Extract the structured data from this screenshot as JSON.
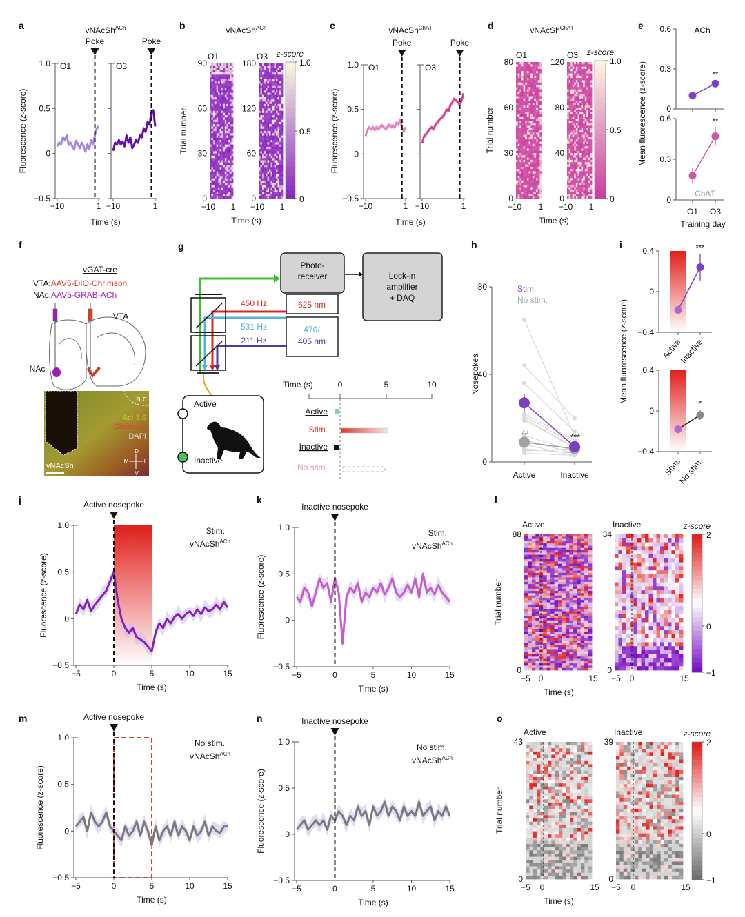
{
  "panel_labels": [
    "a",
    "b",
    "c",
    "d",
    "e",
    "f",
    "g",
    "h",
    "i",
    "j",
    "k",
    "l",
    "m",
    "n",
    "o"
  ],
  "chart_data": [
    {
      "panel": "a",
      "type": "line",
      "title": "vNAcSh",
      "title_sup": "ACh",
      "event_label": "Poke",
      "ylabel": "Fluorescence (z-score)",
      "xlabel": "Time (s)",
      "ylim": [
        -0.5,
        1.0
      ],
      "yticks": [
        "1.0",
        "0.5",
        "0",
        "−0.5"
      ],
      "xlim": [
        -10,
        1
      ],
      "subplots": [
        {
          "label": "O1",
          "xticks": [
            "−10",
            "1"
          ],
          "color": "#a787d8",
          "x_start": -10,
          "x_step": 0.5,
          "values": [
            0.08,
            0.12,
            0.1,
            0.18,
            0.15,
            0.2,
            0.1,
            0.12,
            0.08,
            0.05,
            0.14,
            0.1,
            0.06,
            0.12,
            0.08,
            0.02,
            0.1,
            0.05,
            0.15,
            0.1,
            0.2,
            0.28,
            0.3
          ]
        },
        {
          "label": "O3",
          "xticks": [
            "−10",
            "1"
          ],
          "color": "#6410a8",
          "x_start": -10,
          "x_step": 0.5,
          "values": [
            0.03,
            0.12,
            0.1,
            0.15,
            0.1,
            0.13,
            0.08,
            0.2,
            0.12,
            0.18,
            0.06,
            0.1,
            0.15,
            0.12,
            0.2,
            0.18,
            0.28,
            0.24,
            0.35,
            0.32,
            0.45,
            0.48,
            0.3
          ]
        }
      ]
    },
    {
      "panel": "b",
      "type": "heatmap",
      "title": "vNAcSh",
      "title_sup": "ACh",
      "ylabel": "Trial number",
      "xlabel": "Time (s)",
      "colorbar_label": "z-score",
      "colorbar_ticks": [
        "1.0",
        "0.5",
        "0"
      ],
      "colorbar_range": [
        0,
        1
      ],
      "colors": [
        "#8a26c0",
        "#fbf4df"
      ],
      "subplots": [
        {
          "label": "O1",
          "trials": 90,
          "yticks": [
            "90",
            "60",
            "30",
            "0"
          ],
          "xticks": [
            "−10",
            "1"
          ]
        },
        {
          "label": "O3",
          "trials": 180,
          "yticks": [
            "180",
            "120",
            "60",
            "0"
          ],
          "xticks": [
            "−10",
            "1"
          ]
        }
      ]
    },
    {
      "panel": "c",
      "type": "line",
      "title": "vNAcSh",
      "title_sup": "ChAT",
      "event_label": "Poke",
      "ylabel": "Fluorescence (z-score)",
      "xlabel": "Time (s)",
      "ylim": [
        -0.5,
        1.0
      ],
      "yticks": [
        "1.0",
        "0.5",
        "0",
        "−0.5"
      ],
      "xlim": [
        -10,
        1
      ],
      "subplots": [
        {
          "label": "O1",
          "xticks": [
            "−10",
            "1"
          ],
          "color": "#e584bd",
          "x_start": -10,
          "x_step": 0.5,
          "values": [
            0.2,
            0.27,
            0.3,
            0.28,
            0.3,
            0.27,
            0.3,
            0.28,
            0.3,
            0.32,
            0.3,
            0.28,
            0.3,
            0.33,
            0.3,
            0.32,
            0.3,
            0.35,
            0.33,
            0.38,
            0.3,
            0.25,
            0.3
          ]
        },
        {
          "label": "O3",
          "xticks": [
            "−10",
            "1"
          ],
          "color": "#d9408f",
          "x_start": -10,
          "x_step": 0.5,
          "values": [
            0.12,
            0.2,
            0.22,
            0.25,
            0.28,
            0.3,
            0.28,
            0.32,
            0.35,
            0.38,
            0.4,
            0.42,
            0.45,
            0.5,
            0.48,
            0.55,
            0.58,
            0.62,
            0.6,
            0.58,
            0.55,
            0.6,
            0.68
          ]
        }
      ]
    },
    {
      "panel": "d",
      "type": "heatmap",
      "title": "vNAcSh",
      "title_sup": "ChAT",
      "ylabel": "Trial number",
      "xlabel": "Time (s)",
      "colorbar_label": "z-score",
      "colorbar_ticks": [
        "1.0",
        "0.5",
        "0"
      ],
      "colorbar_range": [
        0,
        1
      ],
      "colors": [
        "#cc3ea2",
        "#fbf4df"
      ],
      "subplots": [
        {
          "label": "O1",
          "trials": 80,
          "yticks": [
            "80",
            "60",
            "30",
            "0"
          ],
          "xticks": [
            "−10",
            "1"
          ]
        },
        {
          "label": "O3",
          "trials": 120,
          "yticks": [
            "120",
            "80",
            "40",
            "0"
          ],
          "xticks": [
            "−10",
            "1"
          ]
        }
      ]
    },
    {
      "panel": "e",
      "type": "line",
      "ylabel": "Mean fluorescence (z-score)",
      "xlabel": "Training day",
      "categories": [
        "O1",
        "O3"
      ],
      "subplots": [
        {
          "label": "ACh",
          "ylim": [
            0,
            0.6
          ],
          "yticks": [
            "0.6",
            "0.3",
            "0"
          ],
          "color": "#7b3fbf",
          "label_color": "#111111",
          "values": [
            0.1,
            0.19
          ],
          "sem": [
            0.03,
            0.025
          ],
          "significance": [
            "",
            "**"
          ]
        },
        {
          "label": "ChAT",
          "ylim": [
            0,
            0.6
          ],
          "yticks": [
            "0.6",
            "0.3",
            "0"
          ],
          "color": "#cc5aa0",
          "label_color": "#999999",
          "values": [
            0.18,
            0.47
          ],
          "sem": [
            0.06,
            0.07
          ],
          "significance": [
            "",
            "**"
          ]
        }
      ]
    },
    {
      "panel": "h",
      "type": "line",
      "ylabel": "Nosepokes",
      "categories": [
        "Active",
        "Inactive"
      ],
      "ylim": [
        0,
        80
      ],
      "yticks": [
        "80",
        "40",
        "0"
      ],
      "series": [
        {
          "name": "Stim.",
          "color": "#7b3fbf",
          "values": [
            27,
            7
          ],
          "sem": [
            4,
            1
          ],
          "significance": [
            "",
            "***"
          ]
        },
        {
          "name": "No stim.",
          "color": "#a3a3a3",
          "values": [
            9,
            6
          ],
          "sem": [
            1,
            0.8
          ],
          "significance": [
            "##",
            ""
          ]
        }
      ],
      "individual": [
        [
          65,
          12
        ],
        [
          44,
          20
        ],
        [
          36,
          14
        ],
        [
          22,
          10
        ],
        [
          21,
          8
        ],
        [
          20,
          6
        ],
        [
          19,
          7
        ],
        [
          12,
          5
        ],
        [
          10,
          4
        ],
        [
          8,
          3
        ],
        [
          5,
          6
        ],
        [
          4,
          3
        ],
        [
          6,
          4
        ]
      ]
    },
    {
      "panel": "i",
      "type": "line",
      "ylabel": "Mean fluorescence (z-score)",
      "ylim": [
        -0.4,
        0.4
      ],
      "yticks": [
        "0.4",
        "0",
        "−0.4"
      ],
      "subplots": [
        {
          "categories": [
            "Active",
            "Inactive"
          ],
          "values": [
            -0.18,
            0.24
          ],
          "sem": [
            0.04,
            0.13
          ],
          "colors": [
            "#b06ac8",
            "#7b3fbf"
          ],
          "line_color": "#7b3fbf",
          "significance": [
            "",
            "***"
          ]
        },
        {
          "categories": [
            "Stim.",
            "No stim."
          ],
          "values": [
            -0.18,
            -0.04
          ],
          "sem": [
            0.04,
            0.05
          ],
          "colors": [
            "#b06ac8",
            "#8a8a8a"
          ],
          "line_color": "#111111",
          "significance": [
            "",
            "*"
          ]
        }
      ]
    },
    {
      "panel": "j",
      "type": "line",
      "title": "Active nosepoke",
      "condition": "Stim.",
      "sensor": "vNAcSh",
      "sensor_sup": "ACh",
      "ylabel": "Fluorescence (z-score)",
      "xlabel": "Time (s)",
      "ylim": [
        -0.5,
        1.0
      ],
      "xlim": [
        -5,
        15
      ],
      "yticks": [
        "1.0",
        "0.5",
        "0",
        "−0.5"
      ],
      "xticks": [
        "−5",
        "0",
        "5",
        "10",
        "15"
      ],
      "color": "#8a1fb8",
      "stim_window": [
        0,
        5
      ],
      "x_start": -5,
      "x_step": 0.5,
      "values": [
        0.05,
        0.15,
        0.1,
        0.2,
        0.08,
        0.15,
        0.2,
        0.25,
        0.3,
        0.4,
        0.5,
        0.2,
        0.0,
        -0.1,
        -0.15,
        -0.1,
        -0.2,
        -0.22,
        -0.25,
        -0.3,
        -0.35,
        -0.15,
        -0.05,
        -0.1,
        0.0,
        -0.05,
        0.02,
        0.05,
        0.0,
        0.05,
        0.08,
        0.03,
        0.1,
        0.05,
        0.12,
        0.08,
        0.1,
        0.15,
        0.1,
        0.18,
        0.12
      ]
    },
    {
      "panel": "k",
      "type": "line",
      "title": "Inactive nosepoke",
      "condition": "Stim.",
      "sensor": "vNAcSh",
      "sensor_sup": "ACh",
      "ylabel": "Fluorescence (z-score)",
      "xlabel": "Time (s)",
      "ylim": [
        -0.5,
        1.0
      ],
      "xlim": [
        -5,
        15
      ],
      "yticks": [
        "1.0",
        "0.5",
        "0",
        "−0.5"
      ],
      "xticks": [
        "−5",
        "0",
        "5",
        "10",
        "15"
      ],
      "color": "#c85cc8",
      "x_start": -5,
      "x_step": 0.5,
      "values": [
        0.25,
        0.2,
        0.35,
        0.3,
        0.15,
        0.3,
        0.45,
        0.35,
        0.4,
        0.2,
        0.45,
        0.3,
        -0.25,
        0.25,
        0.35,
        0.3,
        0.4,
        0.2,
        0.3,
        0.25,
        0.35,
        0.3,
        0.4,
        0.28,
        0.35,
        0.45,
        0.3,
        0.25,
        0.3,
        0.38,
        0.3,
        0.45,
        0.25,
        0.5,
        0.3,
        0.35,
        0.28,
        0.38,
        0.3,
        0.25,
        0.2
      ]
    },
    {
      "panel": "l",
      "type": "heatmap",
      "ylabel": "Trial number",
      "xlabel": "Time (s)",
      "colorbar_label": "z-score",
      "colorbar_ticks": [
        "2",
        "0",
        "−1"
      ],
      "colorbar_range": [
        -1,
        2
      ],
      "colors": [
        "#7a12c4",
        "#ffffff",
        "#e0201c"
      ],
      "subplots": [
        {
          "label": "Active",
          "trials": 88,
          "yticks": [
            "88",
            "0"
          ],
          "xticks": [
            "−5",
            "0",
            "15"
          ]
        },
        {
          "label": "Inactive",
          "trials": 34,
          "yticks": [
            "34",
            "0"
          ],
          "xticks": [
            "−5",
            "0",
            "15"
          ]
        }
      ]
    },
    {
      "panel": "m",
      "type": "line",
      "title": "Active nosepoke",
      "condition": "No stim.",
      "sensor": "vNAcSh",
      "sensor_sup": "ACh",
      "ylabel": "Fluorescence (z-score)",
      "xlabel": "Time (s)",
      "ylim": [
        -0.5,
        1.0
      ],
      "xlim": [
        -5,
        15
      ],
      "yticks": [
        "1.0",
        "0.5",
        "0",
        "−0.5"
      ],
      "xticks": [
        "−5",
        "0",
        "5",
        "10",
        "15"
      ],
      "color": "#7a7a7a",
      "stim_window": [
        0,
        5
      ],
      "x_start": -5,
      "x_step": 0.5,
      "values": [
        0.05,
        0.1,
        0.15,
        0.0,
        0.2,
        0.1,
        0.05,
        0.1,
        0.2,
        0.05,
        0.0,
        -0.05,
        -0.1,
        0.05,
        -0.05,
        0.0,
        0.1,
        -0.05,
        0.1,
        0.0,
        -0.15,
        0.05,
        -0.1,
        0.0,
        0.05,
        -0.05,
        0.1,
        -0.05,
        0.05,
        0.0,
        -0.1,
        0.05,
        -0.05,
        0.0,
        0.1,
        -0.05,
        0.05,
        0.0,
        -0.02,
        0.05,
        0.05
      ]
    },
    {
      "panel": "n",
      "type": "line",
      "title": "Inactive nosepoke",
      "condition": "No stim.",
      "sensor": "vNAcSh",
      "sensor_sup": "ACh",
      "ylabel": "Fluorescence (z-score)",
      "xlabel": "Time (s)",
      "ylim": [
        -0.5,
        1.0
      ],
      "xlim": [
        -5,
        15
      ],
      "yticks": [
        "1.0",
        "0.5",
        "0",
        "−0.5"
      ],
      "xticks": [
        "−5",
        "0",
        "5",
        "10",
        "15"
      ],
      "color": "#7a7a7a",
      "x_start": -5,
      "x_step": 0.5,
      "values": [
        0.05,
        0.1,
        0.15,
        0.05,
        0.1,
        0.15,
        0.1,
        0.15,
        0.05,
        0.2,
        0.15,
        0.25,
        0.2,
        0.1,
        0.2,
        0.15,
        0.3,
        0.2,
        0.25,
        0.1,
        0.3,
        0.2,
        0.25,
        0.35,
        0.2,
        0.3,
        0.25,
        0.15,
        0.3,
        0.2,
        0.25,
        0.2,
        0.35,
        0.2,
        0.25,
        0.3,
        0.15,
        0.25,
        0.2,
        0.3,
        0.2
      ]
    },
    {
      "panel": "o",
      "type": "heatmap",
      "ylabel": "Trial number",
      "xlabel": "Time (s)",
      "colorbar_label": "z-score",
      "colorbar_ticks": [
        "2",
        "0",
        "−1"
      ],
      "colorbar_range": [
        -1,
        2
      ],
      "colors": [
        "#6e6e6e",
        "#ffffff",
        "#e0201c"
      ],
      "subplots": [
        {
          "label": "Active",
          "trials": 43,
          "yticks": [
            "43",
            "0"
          ],
          "xticks": [
            "−5",
            "0",
            "15"
          ]
        },
        {
          "label": "Inactive",
          "trials": 39,
          "yticks": [
            "39",
            "0"
          ],
          "xticks": [
            "−5",
            "0",
            "15"
          ]
        }
      ]
    }
  ],
  "panel_f": {
    "title": "vGAT-cre",
    "vta_prefix": "VTA:",
    "vta_virus": "AAV5-DIO-Chrimson",
    "nac_prefix": "NAc:",
    "nac_virus": "AAV5-GRAB-ACh",
    "vta_label": "VTA",
    "nac_label": "NAc",
    "micrograph": {
      "ac": "a.c",
      "ach": "Ach3.0",
      "chrimson": "Chrimson",
      "dapi": "DAPI",
      "region": "vNAcSh",
      "d": "D",
      "m": "M",
      "l": "L",
      "v": "V"
    },
    "colors": {
      "vta": "#e0402a",
      "nac": "#9a1fb5"
    }
  },
  "panel_g": {
    "photoreceiver": [
      "Photo-",
      "receiver"
    ],
    "lockin": [
      "Lock-in",
      "amplifier",
      "+ DAQ"
    ],
    "led_red": "625 nm",
    "led_blue": [
      "470/",
      "405 nm"
    ],
    "freq_red": "450 Hz",
    "freq_blue": "531 Hz",
    "freq_purple": "211 Hz",
    "active": "Active",
    "inactive": "Inactive",
    "timeline": {
      "label": "Time (s)",
      "ticks": [
        "0",
        "5",
        "10"
      ],
      "rows": [
        "Active",
        "Stim.",
        "Inactive",
        "No stim."
      ]
    }
  }
}
